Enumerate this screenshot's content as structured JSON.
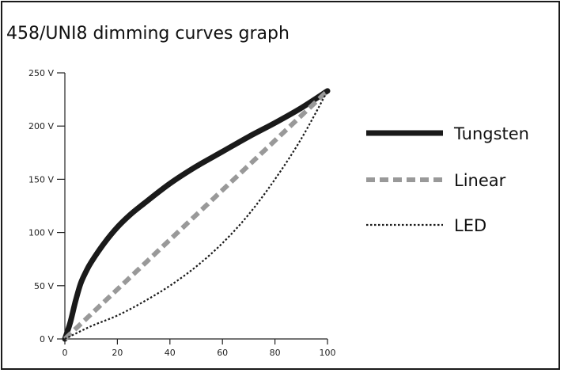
{
  "chart_data": {
    "type": "line",
    "title": "458/UNI8 dimming curves graph",
    "xlabel": "",
    "ylabel": "",
    "xlim": [
      0,
      100
    ],
    "ylim": [
      0,
      250
    ],
    "x_ticks": [
      0,
      20,
      40,
      60,
      80,
      100
    ],
    "y_ticks": [
      0,
      50,
      100,
      150,
      200,
      250
    ],
    "y_tick_labels": [
      "0 V",
      "50 V",
      "100 V",
      "150 V",
      "200 V",
      "250 V"
    ],
    "x_tick_labels": [
      "0",
      "20",
      "40",
      "60",
      "80",
      "100"
    ],
    "grid": false,
    "legend_position": "right",
    "series": [
      {
        "name": "Tungsten",
        "color": "#1a1a1a",
        "style": "solid-thick",
        "x": [
          0,
          2,
          4,
          6,
          8,
          10,
          15,
          20,
          25,
          30,
          40,
          50,
          60,
          70,
          80,
          90,
          100
        ],
        "y": [
          0,
          15,
          35,
          52,
          63,
          72,
          90,
          105,
          117,
          127,
          146,
          162,
          176,
          190,
          203,
          217,
          233
        ]
      },
      {
        "name": "Linear",
        "color": "#999999",
        "style": "dashed-thick",
        "x": [
          0,
          100
        ],
        "y": [
          0,
          233
        ]
      },
      {
        "name": "LED",
        "color": "#1a1a1a",
        "style": "dotted",
        "x": [
          0,
          10,
          20,
          30,
          40,
          50,
          60,
          70,
          80,
          90,
          100
        ],
        "y": [
          0,
          12,
          22,
          35,
          50,
          68,
          90,
          117,
          150,
          188,
          233
        ]
      }
    ]
  }
}
